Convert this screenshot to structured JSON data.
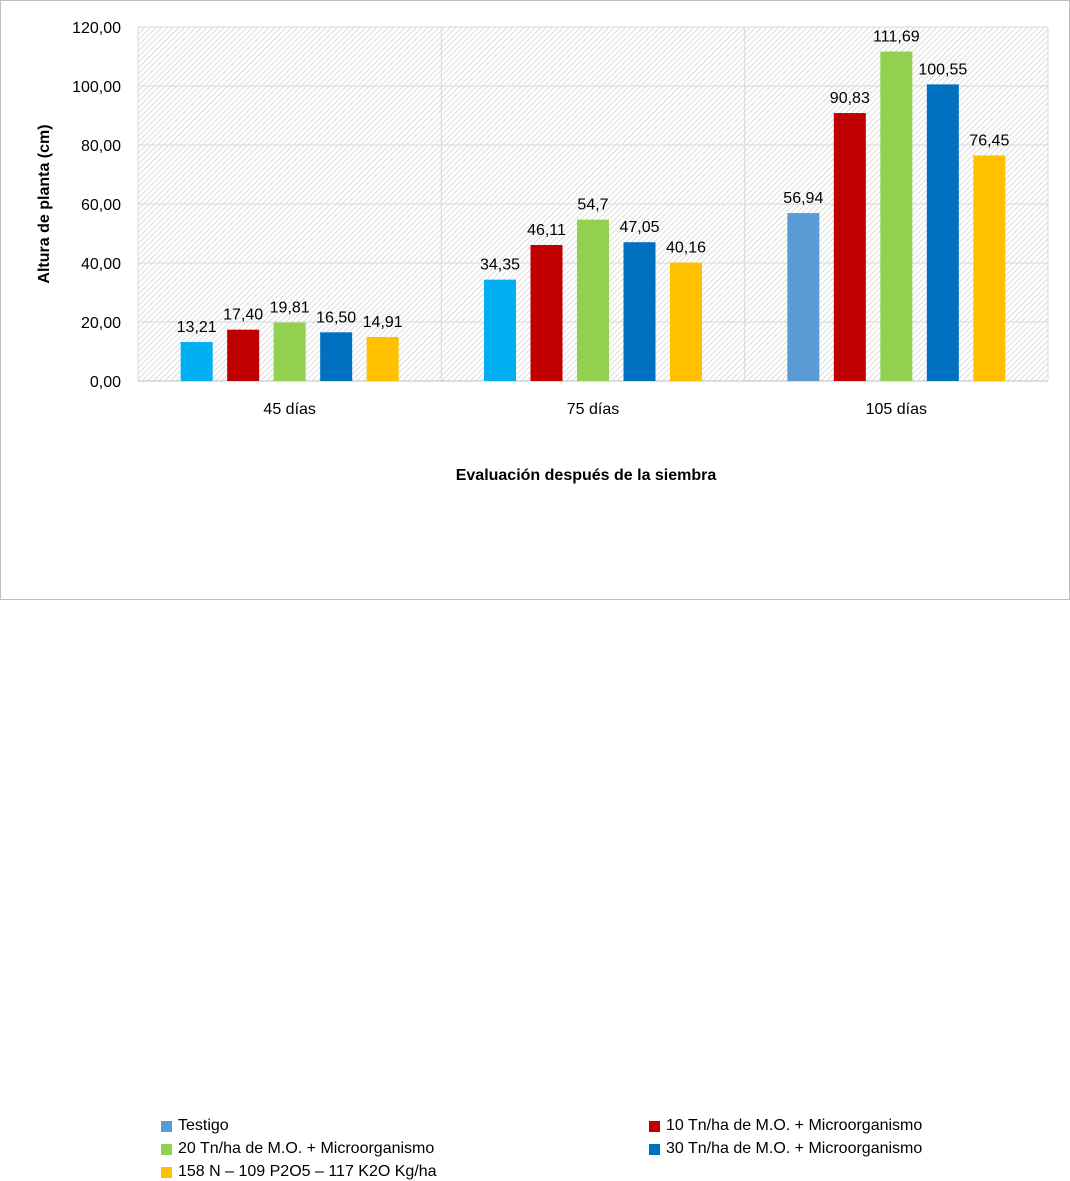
{
  "chart_data": {
    "type": "bar",
    "title": "",
    "xlabel": "Evaluación después de la siembra",
    "ylabel": "Altura de planta (cm)",
    "ylim": [
      0,
      120
    ],
    "ytick_step": 20,
    "ytick_labels": [
      "0,00",
      "20,00",
      "40,00",
      "60,00",
      "80,00",
      "100,00",
      "120,00"
    ],
    "categories": [
      "45 días",
      "75 días",
      "105 días"
    ],
    "grid": true,
    "legend_position": "bottom",
    "series": [
      {
        "name": "Testigo",
        "values": [
          13.21,
          34.35,
          56.94
        ],
        "labels": [
          "13,21",
          "34,35",
          "56,94"
        ],
        "colors": [
          "#00B0F0",
          "#00B0F0",
          "#5B9BD5"
        ],
        "legend_color": "#5B9BD5"
      },
      {
        "name": "10 Tn/ha de M.O. + Microorganismo",
        "values": [
          17.4,
          46.11,
          90.83
        ],
        "labels": [
          "17,40",
          "46,11",
          "90,83"
        ],
        "colors": [
          "#C00000",
          "#C00000",
          "#C00000"
        ],
        "legend_color": "#C00000"
      },
      {
        "name": "20 Tn/ha de M.O. + Microorganismo",
        "values": [
          19.81,
          54.7,
          111.69
        ],
        "labels": [
          "19,81",
          "54,7",
          "111,69"
        ],
        "colors": [
          "#92D050",
          "#92D050",
          "#92D050"
        ],
        "legend_color": "#92D050"
      },
      {
        "name": "30 Tn/ha de M.O. + Microorganismo",
        "values": [
          16.5,
          47.05,
          100.55
        ],
        "labels": [
          "16,50",
          "47,05",
          "100,55"
        ],
        "colors": [
          "#0070C0",
          "#0070C0",
          "#0070C0"
        ],
        "legend_color": "#0070C0"
      },
      {
        "name": "158 N – 109 P2O5 – 117 K2O Kg/ha",
        "values": [
          14.91,
          40.16,
          76.45
        ],
        "labels": [
          "14,91",
          "40,16",
          "76,45"
        ],
        "colors": [
          "#FFC000",
          "#FFC000",
          "#FFC000"
        ],
        "legend_color": "#FFC000"
      }
    ]
  }
}
